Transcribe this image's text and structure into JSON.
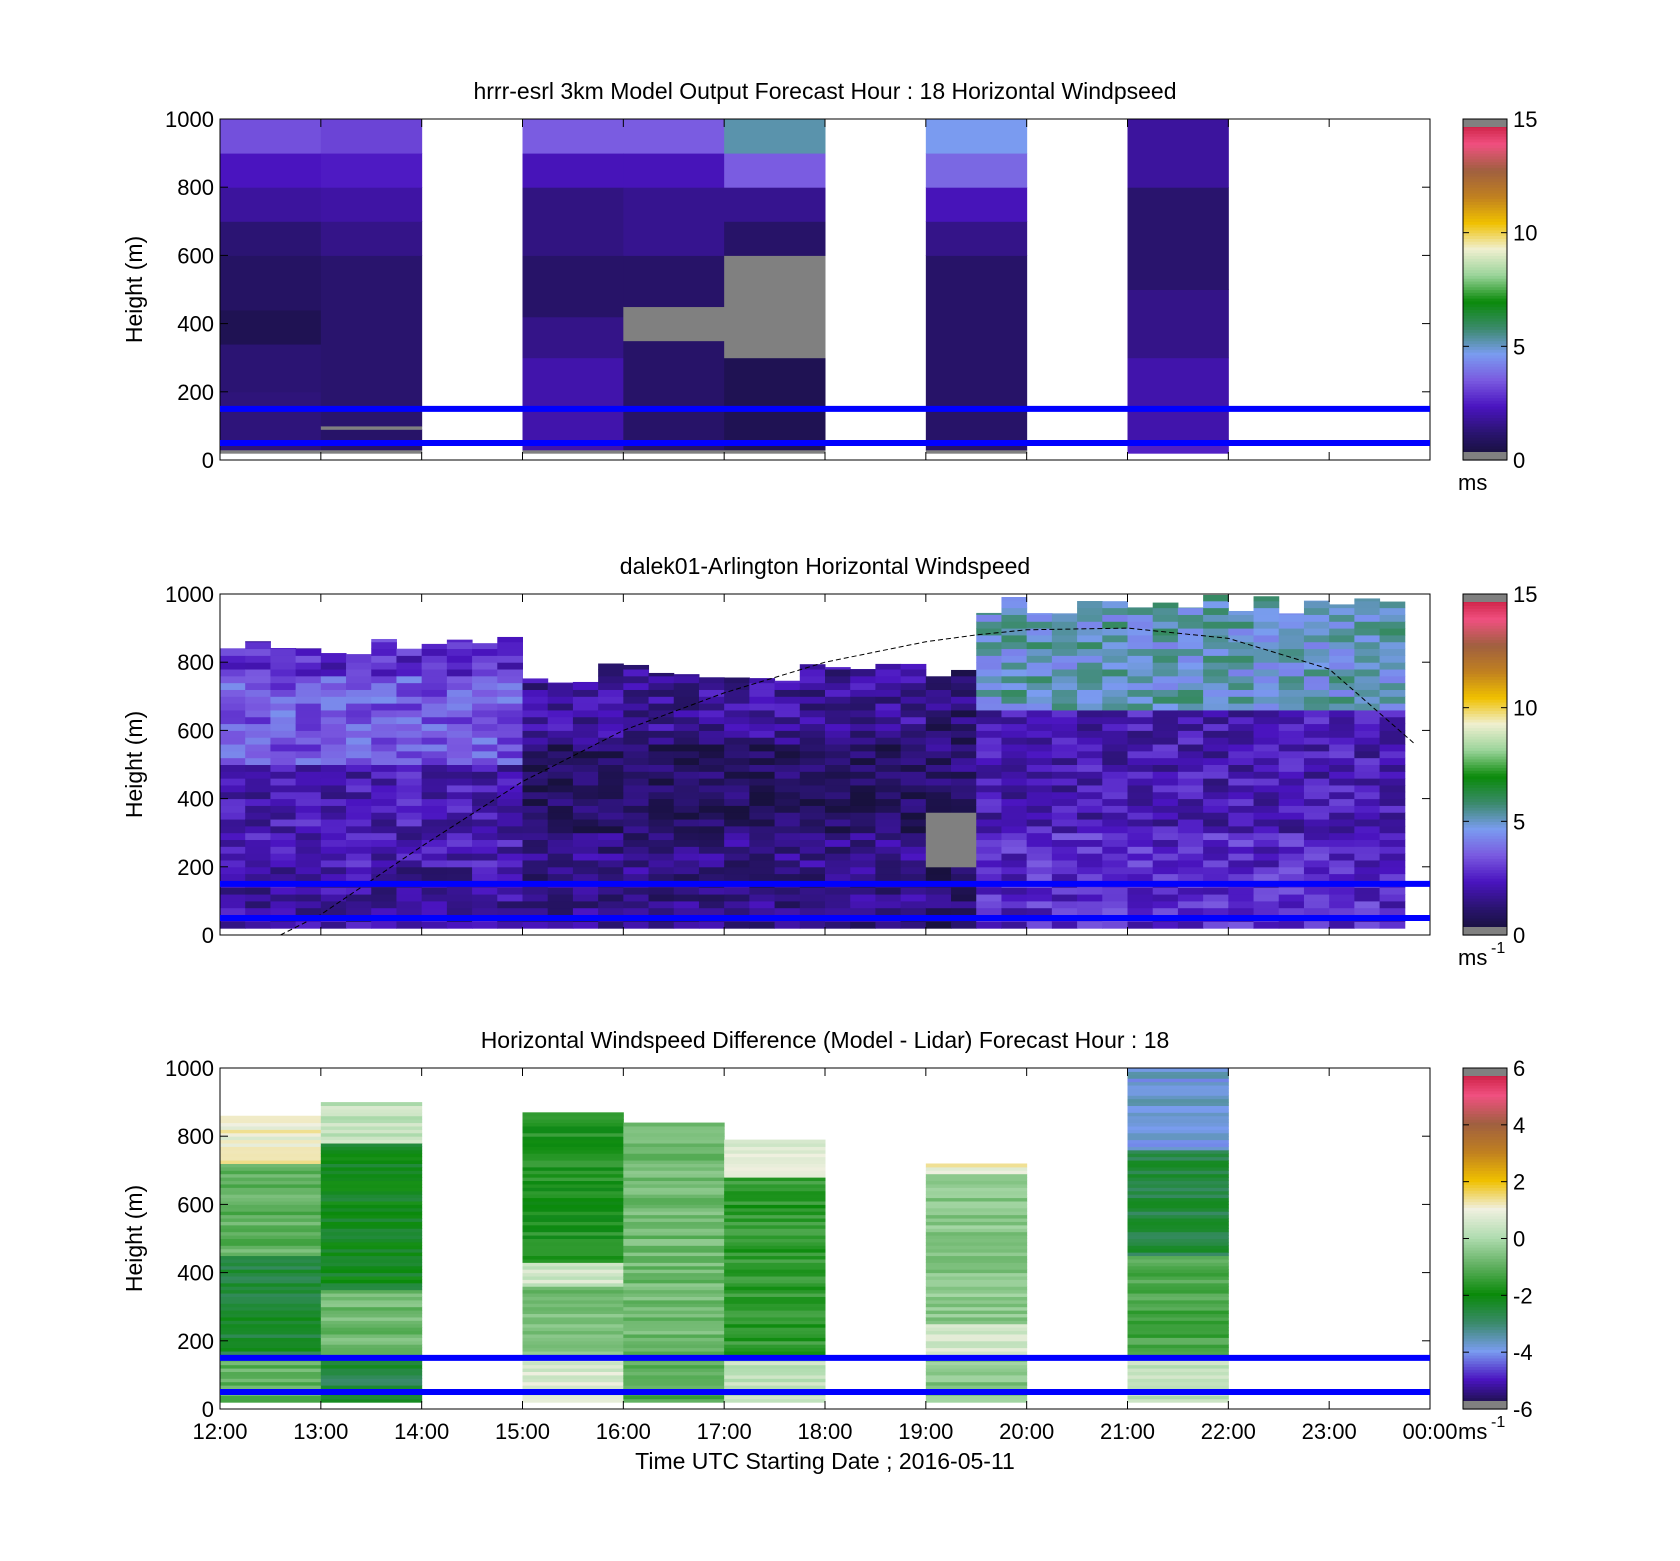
{
  "figure": {
    "xlabel": "Time UTC  Starting Date ; 2016-05-11",
    "x_ticks": [
      "12:00",
      "13:00",
      "14:00",
      "15:00",
      "16:00",
      "17:00",
      "18:00",
      "19:00",
      "20:00",
      "21:00",
      "22:00",
      "23:00",
      "00:00"
    ]
  },
  "colors": {
    "reference_line": "#0000ff",
    "no_data_gray": "#808080",
    "speed_scale": [
      "#141033",
      "#2a1470",
      "#4a14c0",
      "#7a5ae0",
      "#7a9cf0",
      "#3a8a6a",
      "#0a8a0a",
      "#9ad49a",
      "#f0f0d0",
      "#f0c000",
      "#c08020",
      "#a06040",
      "#f05080",
      "#c01030"
    ],
    "diff_scale": [
      "#141033",
      "#4a14c0",
      "#7a9cf0",
      "#3a8a6a",
      "#0a8a0a",
      "#60b060",
      "#b0dcb0",
      "#f0f0e0",
      "#f0c000",
      "#c08020",
      "#a06040",
      "#f05080",
      "#c01030"
    ]
  },
  "chart_data": [
    {
      "type": "heatmap",
      "title": "hrrr-esrl 3km Model Output   Forecast Hour : 18 Horizontal Windpseed",
      "ylabel": "Height (m)",
      "ylim": [
        0,
        1000
      ],
      "y_ticks": [
        "0",
        "200",
        "400",
        "600",
        "800",
        "1000"
      ],
      "colorbar": {
        "label": "ms",
        "ticks": [
          "0",
          "5",
          "10",
          "15"
        ],
        "range": [
          0,
          15
        ]
      },
      "reference_lines_m": [
        50,
        150
      ],
      "hourly_columns": [
        {
          "hour": "12:00",
          "profile_ms": [
            {
              "z": [
                20,
                30
              ],
              "v": -1
            },
            {
              "z": [
                30,
                200
              ],
              "v": 1.3
            },
            {
              "z": [
                200,
                340
              ],
              "v": 1.2
            },
            {
              "z": [
                340,
                440
              ],
              "v": 0.6
            },
            {
              "z": [
                440,
                600
              ],
              "v": 0.9
            },
            {
              "z": [
                600,
                700
              ],
              "v": 1.2
            },
            {
              "z": [
                700,
                800
              ],
              "v": 1.8
            },
            {
              "z": [
                800,
                900
              ],
              "v": 2.3
            },
            {
              "z": [
                900,
                1000
              ],
              "v": 3.3
            }
          ]
        },
        {
          "hour": "13:00",
          "profile_ms": [
            {
              "z": [
                20,
                30
              ],
              "v": -1
            },
            {
              "z": [
                30,
                90
              ],
              "v": 1.0
            },
            {
              "z": [
                90,
                100
              ],
              "v": -1
            },
            {
              "z": [
                100,
                600
              ],
              "v": 1.1
            },
            {
              "z": [
                600,
                700
              ],
              "v": 1.5
            },
            {
              "z": [
                700,
                800
              ],
              "v": 1.9
            },
            {
              "z": [
                800,
                900
              ],
              "v": 2.4
            },
            {
              "z": [
                900,
                1000
              ],
              "v": 3.1
            }
          ]
        },
        {
          "hour": "14:00",
          "profile_ms": []
        },
        {
          "hour": "15:00",
          "profile_ms": [
            {
              "z": [
                20,
                30
              ],
              "v": -1
            },
            {
              "z": [
                30,
                300
              ],
              "v": 2.0
            },
            {
              "z": [
                300,
                420
              ],
              "v": 1.5
            },
            {
              "z": [
                420,
                600
              ],
              "v": 1.0
            },
            {
              "z": [
                600,
                800
              ],
              "v": 1.4
            },
            {
              "z": [
                800,
                900
              ],
              "v": 2.2
            },
            {
              "z": [
                900,
                1000
              ],
              "v": 3.5
            }
          ]
        },
        {
          "hour": "16:00",
          "profile_ms": [
            {
              "z": [
                20,
                30
              ],
              "v": -1
            },
            {
              "z": [
                30,
                350
              ],
              "v": 1.0
            },
            {
              "z": [
                350,
                450
              ],
              "v": -1
            },
            {
              "z": [
                450,
                600
              ],
              "v": 1.0
            },
            {
              "z": [
                600,
                800
              ],
              "v": 1.6
            },
            {
              "z": [
                800,
                900
              ],
              "v": 2.2
            },
            {
              "z": [
                900,
                1000
              ],
              "v": 3.5
            }
          ]
        },
        {
          "hour": "17:00",
          "profile_ms": [
            {
              "z": [
                20,
                30
              ],
              "v": -1
            },
            {
              "z": [
                30,
                300
              ],
              "v": 0.6
            },
            {
              "z": [
                300,
                600
              ],
              "v": -1
            },
            {
              "z": [
                600,
                700
              ],
              "v": 1.0
            },
            {
              "z": [
                700,
                800
              ],
              "v": 1.6
            },
            {
              "z": [
                800,
                900
              ],
              "v": 3.5
            },
            {
              "z": [
                900,
                1000
              ],
              "v": 5.2
            }
          ]
        },
        {
          "hour": "18:00",
          "profile_ms": []
        },
        {
          "hour": "19:00",
          "profile_ms": [
            {
              "z": [
                20,
                30
              ],
              "v": -1
            },
            {
              "z": [
                30,
                600
              ],
              "v": 1.0
            },
            {
              "z": [
                600,
                700
              ],
              "v": 1.5
            },
            {
              "z": [
                700,
                800
              ],
              "v": 2.2
            },
            {
              "z": [
                800,
                900
              ],
              "v": 3.7
            },
            {
              "z": [
                900,
                1000
              ],
              "v": 4.6
            }
          ]
        },
        {
          "hour": "20:00",
          "profile_ms": []
        },
        {
          "hour": "21:00",
          "profile_ms": [
            {
              "z": [
                20,
                60
              ],
              "v": 2.5
            },
            {
              "z": [
                60,
                300
              ],
              "v": 2.0
            },
            {
              "z": [
                300,
                500
              ],
              "v": 1.5
            },
            {
              "z": [
                500,
                800
              ],
              "v": 1.1
            },
            {
              "z": [
                800,
                1000
              ],
              "v": 1.8
            }
          ]
        },
        {
          "hour": "22:00",
          "profile_ms": []
        },
        {
          "hour": "23:00",
          "profile_ms": []
        }
      ]
    },
    {
      "type": "heatmap",
      "title": "dalek01-Arlington  Horizontal Windspeed",
      "ylabel": "Height (m)",
      "ylim": [
        0,
        1000
      ],
      "y_ticks": [
        "0",
        "200",
        "400",
        "600",
        "800",
        "1000"
      ],
      "colorbar": {
        "label": "ms",
        "label_superscript": "-1",
        "ticks": [
          "0",
          "5",
          "10",
          "15"
        ],
        "range": [
          0,
          15
        ]
      },
      "reference_lines_m": [
        50,
        150
      ],
      "lidar_columns_per_hour": 4,
      "dashed_curve": {
        "x_hours": [
          0.6,
          1.0,
          2.0,
          3.0,
          4.0,
          5.0,
          6.0,
          7.0,
          7.5,
          8.0,
          9.0,
          10.0,
          11.0,
          11.85
        ],
        "y_m": [
          0,
          60,
          260,
          450,
          600,
          710,
          800,
          860,
          880,
          895,
          900,
          870,
          780,
          560
        ]
      },
      "description_profiles": [
        {
          "hours": [
            0,
            3
          ],
          "top_m": 880,
          "layers": [
            {
              "z": [
                0,
                200
              ],
              "v": 1.8
            },
            {
              "z": [
                200,
                500
              ],
              "v": 2.2
            },
            {
              "z": [
                500,
                750
              ],
              "v": 3.5
            },
            {
              "z": [
                750,
                880
              ],
              "v": 2.6
            }
          ]
        },
        {
          "hours": [
            3,
            7
          ],
          "top_m": 800,
          "layers": [
            {
              "z": [
                0,
                300
              ],
              "v": 1.5
            },
            {
              "z": [
                300,
                550
              ],
              "v": 0.8
            },
            {
              "z": [
                550,
                800
              ],
              "v": 1.8
            }
          ]
        },
        {
          "hours": [
            7,
            7.5
          ],
          "top_m": 780,
          "layers": [
            {
              "z": [
                0,
                200
              ],
              "v": 1.0
            },
            {
              "z": [
                200,
                360
              ],
              "v": -1
            },
            {
              "z": [
                360,
                780
              ],
              "v": 1.2
            }
          ]
        },
        {
          "hours": [
            7.5,
            12
          ],
          "top_m": 1000,
          "layers": [
            {
              "z": [
                0,
                300
              ],
              "v": 2.6
            },
            {
              "z": [
                300,
                650
              ],
              "v": 2.2
            },
            {
              "z": [
                650,
                1000
              ],
              "v": 5.0
            }
          ]
        }
      ]
    },
    {
      "type": "heatmap",
      "title": "Horizontal Windspeed Difference (Model - Lidar) Forecast Hour : 18",
      "ylabel": "Height (m)",
      "xlabel": "Time UTC  Starting Date ; 2016-05-11",
      "ylim": [
        0,
        1000
      ],
      "y_ticks": [
        "0",
        "200",
        "400",
        "600",
        "800",
        "1000"
      ],
      "colorbar": {
        "label": "ms",
        "label_superscript": "-1",
        "ticks": [
          "-6",
          "-4",
          "-2",
          "0",
          "2",
          "4",
          "6"
        ],
        "range": [
          -6,
          6
        ]
      },
      "reference_lines_m": [
        50,
        150
      ],
      "hourly_columns": [
        {
          "hour": "12:00",
          "top_m": 860,
          "profile_ms": [
            {
              "z": [
                20,
                150
              ],
              "v": -1.0
            },
            {
              "z": [
                150,
                450
              ],
              "v": -2.5
            },
            {
              "z": [
                450,
                720
              ],
              "v": -1.0
            },
            {
              "z": [
                720,
                860
              ],
              "v": 1.0
            }
          ]
        },
        {
          "hour": "13:00",
          "top_m": 900,
          "profile_ms": [
            {
              "z": [
                20,
                150
              ],
              "v": -2.6
            },
            {
              "z": [
                150,
                350
              ],
              "v": -0.8
            },
            {
              "z": [
                350,
                780
              ],
              "v": -2.2
            },
            {
              "z": [
                780,
                900
              ],
              "v": 0.3
            }
          ]
        },
        {
          "hour": "14:00",
          "top_m": 0,
          "profile_ms": []
        },
        {
          "hour": "15:00",
          "top_m": 870,
          "profile_ms": [
            {
              "z": [
                20,
                150
              ],
              "v": 0.6
            },
            {
              "z": [
                150,
                360
              ],
              "v": -0.7
            },
            {
              "z": [
                360,
                430
              ],
              "v": 0.5
            },
            {
              "z": [
                430,
                870
              ],
              "v": -1.8
            }
          ]
        },
        {
          "hour": "16:00",
          "top_m": 840,
          "profile_ms": [
            {
              "z": [
                20,
                170
              ],
              "v": -1.2
            },
            {
              "z": [
                170,
                840
              ],
              "v": -0.8
            }
          ]
        },
        {
          "hour": "17:00",
          "top_m": 790,
          "profile_ms": [
            {
              "z": [
                20,
                150
              ],
              "v": 0.2
            },
            {
              "z": [
                150,
                680
              ],
              "v": -1.6
            },
            {
              "z": [
                680,
                790
              ],
              "v": 0.6
            }
          ]
        },
        {
          "hour": "18:00",
          "top_m": 0,
          "profile_ms": []
        },
        {
          "hour": "19:00",
          "top_m": 720,
          "profile_ms": [
            {
              "z": [
                20,
                150
              ],
              "v": -0.5
            },
            {
              "z": [
                150,
                250
              ],
              "v": 0.6
            },
            {
              "z": [
                250,
                690
              ],
              "v": -0.5
            },
            {
              "z": [
                690,
                720
              ],
              "v": 1.0
            }
          ]
        },
        {
          "hour": "20:00",
          "top_m": 0,
          "profile_ms": []
        },
        {
          "hour": "21:00",
          "top_m": 1000,
          "profile_ms": [
            {
              "z": [
                20,
                150
              ],
              "v": 0.3
            },
            {
              "z": [
                150,
                450
              ],
              "v": -1.3
            },
            {
              "z": [
                450,
                760
              ],
              "v": -2.6
            },
            {
              "z": [
                760,
                1000
              ],
              "v": -3.8
            }
          ]
        },
        {
          "hour": "22:00",
          "top_m": 0,
          "profile_ms": []
        },
        {
          "hour": "23:00",
          "top_m": 0,
          "profile_ms": []
        }
      ]
    }
  ]
}
